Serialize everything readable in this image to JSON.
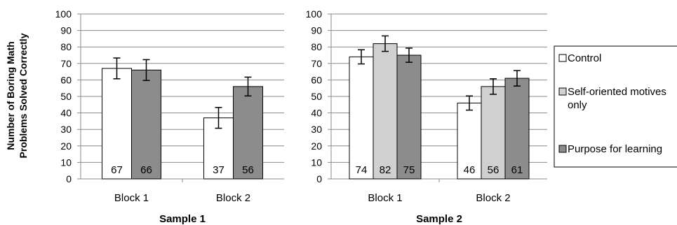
{
  "y_axis_title_line1": "Number of Boring Math",
  "y_axis_title_line2": "Problems Solved Correctly",
  "legend": [
    {
      "lines": [
        "Control"
      ],
      "color": "#ffffff"
    },
    {
      "lines": [
        "Self-oriented motives",
        "only"
      ],
      "color": "#d0d0d0"
    },
    {
      "lines": [
        "Purpose for learning"
      ],
      "color": "#8c8c8c"
    }
  ],
  "chart_data": [
    {
      "type": "bar",
      "title": "Sample 1",
      "ylabel": "Number of Boring Math Problems Solved Correctly",
      "ylim": [
        0,
        100
      ],
      "yticks": [
        0,
        10,
        20,
        30,
        40,
        50,
        60,
        70,
        80,
        90,
        100
      ],
      "grid": true,
      "categories": [
        "Block 1",
        "Block 2"
      ],
      "series": [
        {
          "name": "Control",
          "color": "#ffffff",
          "values": [
            67,
            37
          ],
          "error": [
            6.3,
            6.3
          ]
        },
        {
          "name": "Purpose for learning",
          "color": "#8c8c8c",
          "values": [
            66,
            56
          ],
          "error": [
            6.3,
            5.7
          ]
        }
      ]
    },
    {
      "type": "bar",
      "title": "Sample 2",
      "ylabel": "",
      "ylim": [
        0,
        100
      ],
      "yticks": [
        0,
        10,
        20,
        30,
        40,
        50,
        60,
        70,
        80,
        90,
        100
      ],
      "grid": true,
      "categories": [
        "Block 1",
        "Block 2"
      ],
      "series": [
        {
          "name": "Control",
          "color": "#ffffff",
          "values": [
            74,
            46
          ],
          "error": [
            4.3,
            4.3
          ]
        },
        {
          "name": "Self-oriented motives only",
          "color": "#d0d0d0",
          "values": [
            82,
            56
          ],
          "error": [
            4.7,
            4.7
          ]
        },
        {
          "name": "Purpose for learning",
          "color": "#8c8c8c",
          "values": [
            75,
            61
          ],
          "error": [
            4.3,
            4.7
          ]
        }
      ]
    }
  ]
}
